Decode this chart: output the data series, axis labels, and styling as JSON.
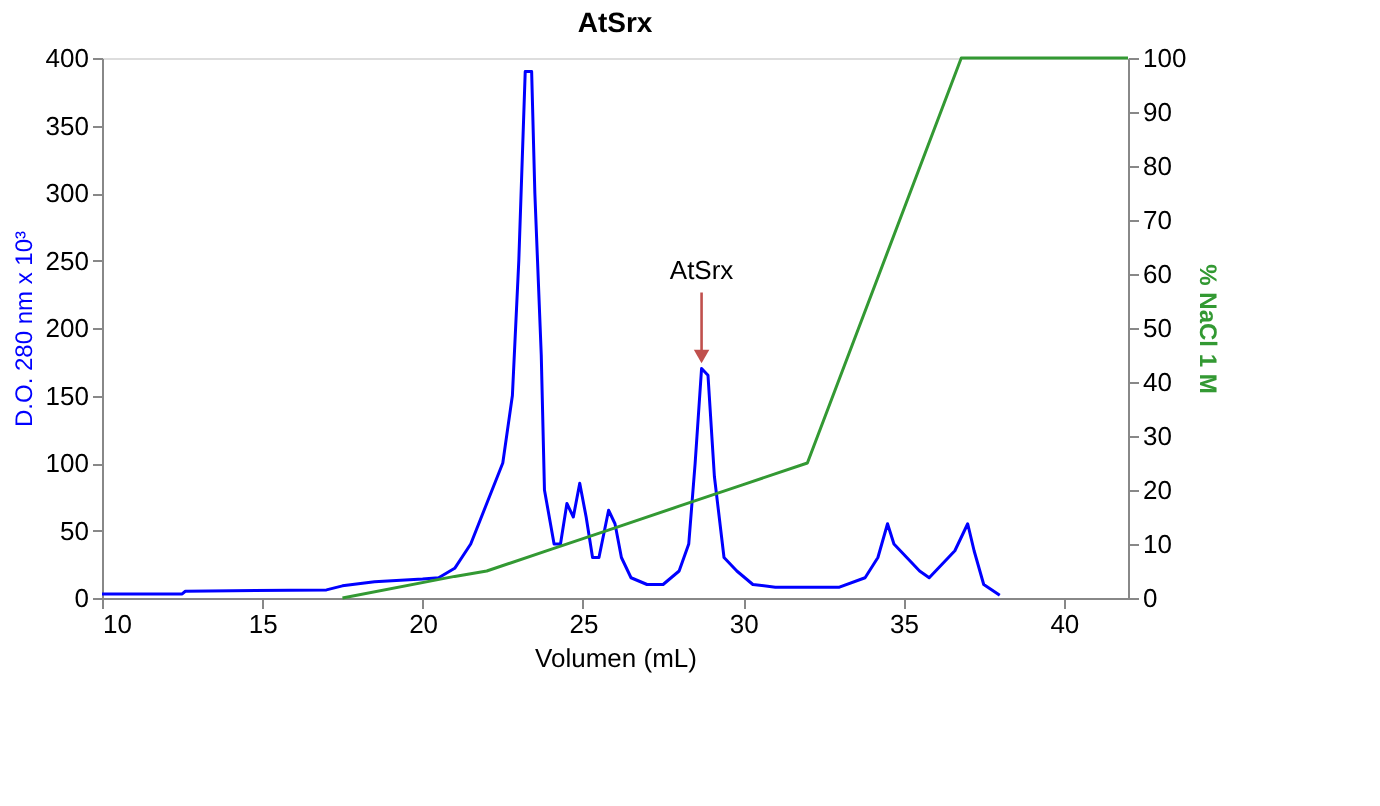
{
  "chart_data": {
    "type": "line",
    "title": "AtSrx",
    "xlabel": "Volumen (mL)",
    "ylabel": "D.O. 280 nm x 10³",
    "y2label": "% NaCl 1 M",
    "xlim": [
      10,
      42
    ],
    "xticks": [
      10,
      15,
      20,
      25,
      30,
      35,
      40
    ],
    "ylim": [
      0,
      400
    ],
    "yticks": [
      0,
      50,
      100,
      150,
      200,
      250,
      300,
      350,
      400
    ],
    "y2lim": [
      0,
      100
    ],
    "y2ticks": [
      0,
      10,
      20,
      30,
      40,
      50,
      60,
      70,
      80,
      90,
      100
    ],
    "grid": false,
    "line_style": "solid",
    "marker": "none",
    "series": [
      {
        "color": "#0000ff",
        "x": [
          10,
          12.5,
          12.6,
          17,
          17.5,
          18.5,
          20,
          20.5,
          21,
          21.5,
          22,
          22.5,
          22.8,
          23.0,
          23.2,
          23.4,
          23.5,
          23.7,
          23.8,
          24.1,
          24.3,
          24.5,
          24.7,
          24.9,
          25.1,
          25.3,
          25.5,
          25.8,
          26.0,
          26.2,
          26.5,
          27,
          27.5,
          28,
          28.3,
          28.5,
          28.7,
          28.9,
          29.1,
          29.4,
          29.8,
          30.3,
          31,
          33,
          33.8,
          34.2,
          34.5,
          34.7,
          35.1,
          35.5,
          35.8,
          36.2,
          36.6,
          37.0,
          37.2,
          37.5,
          38
        ],
        "values": [
          3,
          3,
          5,
          6,
          9,
          12,
          14,
          15,
          22,
          40,
          70,
          100,
          150,
          250,
          390,
          390,
          300,
          180,
          80,
          40,
          40,
          70,
          60,
          85,
          60,
          30,
          30,
          65,
          55,
          30,
          15,
          10,
          10,
          20,
          40,
          100,
          170,
          165,
          90,
          30,
          20,
          10,
          8,
          8,
          15,
          30,
          55,
          40,
          30,
          20,
          15,
          25,
          35,
          55,
          35,
          10,
          2
        ]
      },
      {
        "color": "#339933",
        "axis": "y2",
        "x": [
          17.5,
          21,
          22,
          24,
          26,
          28,
          30,
          32,
          36.8,
          42
        ],
        "values": [
          0,
          4,
          5,
          9,
          13,
          17,
          21,
          25,
          100,
          100
        ]
      }
    ],
    "annotations": [
      {
        "text": "AtSrx",
        "x": 28.7,
        "y": 170
      }
    ]
  }
}
